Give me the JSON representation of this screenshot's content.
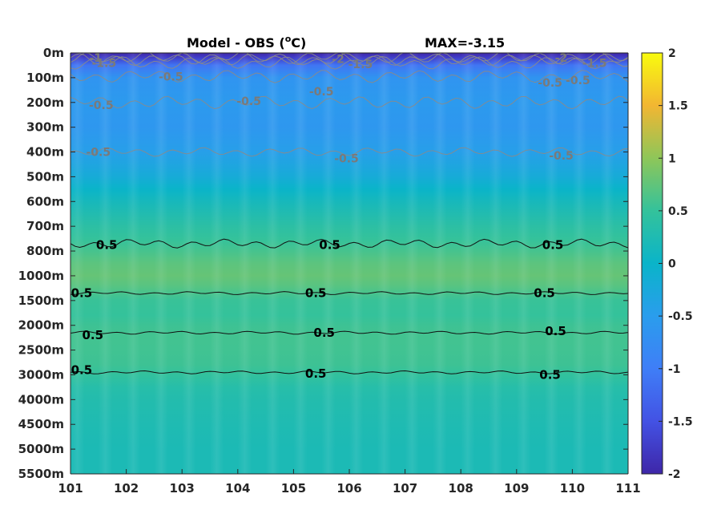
{
  "chart_data": {
    "type": "heatmap",
    "title": "Model - OBS (°C)",
    "title_main": "Model - OBS (",
    "title_sup": "o",
    "title_unit": "C)",
    "max_label": "MAX=-3.15",
    "colormap": "parula",
    "colorbar_limits": [
      -2,
      2
    ],
    "colorbar_ticks": [
      "2",
      "1.5",
      "1",
      "0.5",
      "0",
      "-0.5",
      "-1",
      "-1.5",
      "-2"
    ],
    "x_ticks": [
      "101",
      "102",
      "103",
      "104",
      "105",
      "106",
      "107",
      "108",
      "109",
      "110",
      "111"
    ],
    "xlim": [
      101,
      111
    ],
    "y_ticks": [
      "0m",
      "100m",
      "200m",
      "300m",
      "400m",
      "500m",
      "600m",
      "700m",
      "800m",
      "1000m",
      "1500m",
      "2000m",
      "2500m",
      "3000m",
      "4000m",
      "4500m",
      "5000m",
      "5500m"
    ],
    "depth_levels_m": [
      0,
      100,
      200,
      300,
      400,
      500,
      600,
      700,
      800,
      1000,
      1500,
      2000,
      2500,
      3000,
      4000,
      4500,
      5000,
      5500
    ],
    "depth_profile": {
      "depth_m": [
        0,
        20,
        50,
        100,
        200,
        300,
        400,
        500,
        550,
        600,
        700,
        750,
        800,
        900,
        1000,
        1200,
        1500,
        1800,
        2000,
        2200,
        2500,
        2800,
        3000,
        3500,
        4000,
        4500,
        5000,
        5500
      ],
      "value": [
        -2.0,
        -1.7,
        -1.1,
        -0.65,
        -0.55,
        -0.6,
        -0.45,
        -0.2,
        0.0,
        0.15,
        0.4,
        0.5,
        0.6,
        0.72,
        0.78,
        0.7,
        0.52,
        0.5,
        0.55,
        0.58,
        0.57,
        0.55,
        0.48,
        0.35,
        0.3,
        0.25,
        0.22,
        0.22
      ]
    },
    "contours": [
      {
        "level": "0.5",
        "style": "dark",
        "depth_m": 770,
        "labels": [
          [
            101.65,
            775
          ],
          [
            105.65,
            775
          ],
          [
            109.65,
            775
          ]
        ]
      },
      {
        "level": "0.5",
        "style": "dark",
        "depth_m": 1350,
        "labels": [
          [
            101.2,
            1350
          ],
          [
            105.4,
            1350
          ],
          [
            109.5,
            1350
          ]
        ]
      },
      {
        "level": "0.5",
        "style": "dark",
        "depth_m": 2150,
        "labels": [
          [
            101.4,
            2200
          ],
          [
            105.55,
            2150
          ],
          [
            109.7,
            2120
          ]
        ]
      },
      {
        "level": "0.5",
        "style": "dark",
        "depth_m": 2950,
        "labels": [
          [
            101.2,
            2900
          ],
          [
            105.4,
            2980
          ],
          [
            109.6,
            3000
          ]
        ]
      },
      {
        "level": "-0.5",
        "style": "grey",
        "depth_m": 400,
        "labels": [
          [
            101.5,
            400
          ],
          [
            105.95,
            425
          ],
          [
            109.8,
            415
          ]
        ]
      },
      {
        "level": "-0.5",
        "style": "grey",
        "depth_m": 200,
        "labels": [
          [
            101.55,
            210
          ],
          [
            104.2,
            195
          ],
          [
            105.5,
            155
          ]
        ]
      },
      {
        "level": "-0.5",
        "style": "grey",
        "depth_m": 95,
        "labels": [
          [
            102.8,
            95
          ],
          [
            109.6,
            120
          ],
          [
            110.1,
            110
          ]
        ]
      },
      {
        "level": "-1.5",
        "style": "grey",
        "depth_m": 40,
        "labels": [
          [
            101.6,
            40
          ],
          [
            106.2,
            45
          ],
          [
            110.4,
            40
          ]
        ]
      },
      {
        "level": "-2",
        "style": "grey",
        "depth_m": 25,
        "labels": [
          [
            105.8,
            25
          ],
          [
            109.8,
            20
          ]
        ]
      },
      {
        "level": "-1",
        "style": "grey",
        "depth_m": 20,
        "labels": [
          [
            101.45,
            20
          ]
        ]
      }
    ]
  }
}
